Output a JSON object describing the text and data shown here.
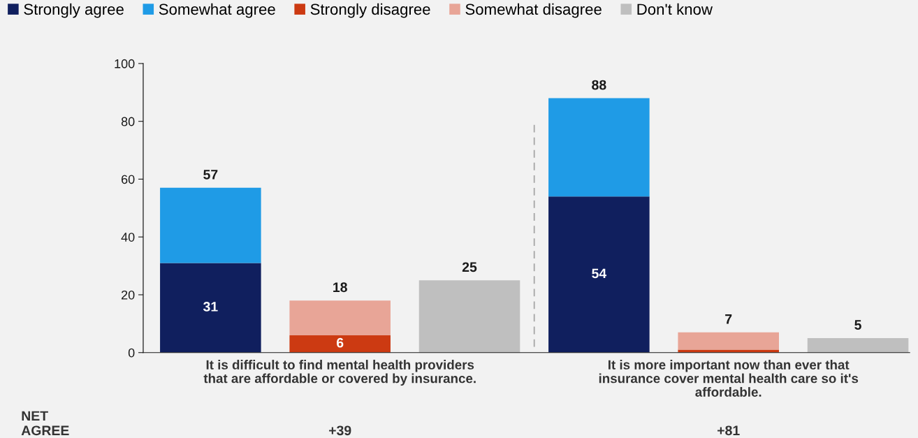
{
  "chart_data": {
    "type": "bar",
    "stacked": true,
    "categories": [
      null,
      "It is difficult to find mental health providers\nthat are affordable or covered by insurance.",
      null,
      null,
      "It is more important now than ever that\ninsurance cover mental health care so it's\naffordable.",
      null
    ],
    "series": [
      {
        "name": "Strongly agree",
        "color": "#101f5e",
        "values": [
          31,
          null,
          null,
          54,
          null,
          null
        ],
        "value_labels": [
          "31",
          null,
          null,
          "54",
          null,
          null
        ]
      },
      {
        "name": "Somewhat agree",
        "color": "#1f9be6",
        "values": [
          26,
          null,
          null,
          34,
          null,
          null
        ]
      },
      {
        "name": "Strongly disagree",
        "color": "#cc3a12",
        "values": [
          null,
          6,
          null,
          null,
          1,
          null
        ],
        "value_labels": [
          null,
          "6",
          null,
          null,
          null,
          null
        ]
      },
      {
        "name": "Somewhat disagree",
        "color": "#e8a597",
        "values": [
          null,
          12,
          null,
          null,
          6,
          null
        ]
      },
      {
        "name": "Don't know",
        "color": "#bfbfbf",
        "values": [
          null,
          null,
          25,
          null,
          null,
          5
        ]
      }
    ],
    "totals": [
      "57",
      "18",
      "25",
      "88",
      "7",
      "5"
    ],
    "ylim": [
      0,
      100
    ],
    "yticks": [
      0,
      20,
      40,
      60,
      80,
      100
    ],
    "annotations": [
      "NET\nAGREE",
      "+39",
      "+81"
    ],
    "legend": "top left",
    "grid": false
  }
}
